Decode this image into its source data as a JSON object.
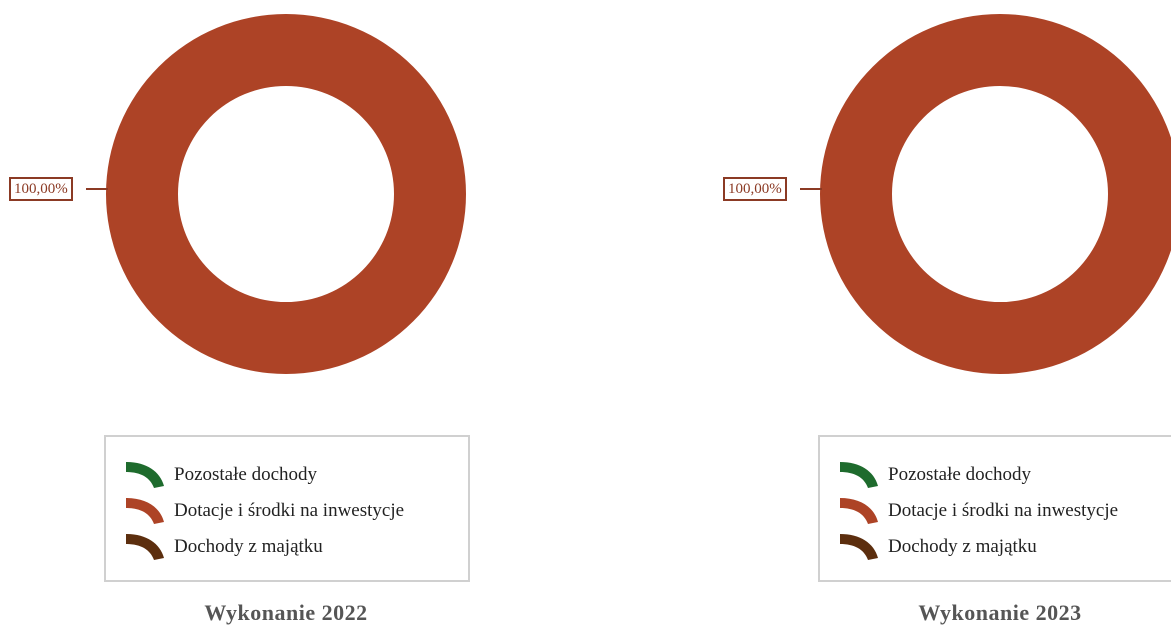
{
  "chart_data": [
    {
      "type": "pie",
      "variant": "donut",
      "title": "Wykonanie 2022",
      "slices": [
        {
          "label": "Pozostałe dochody",
          "value": 0,
          "color": "#1e6b2d"
        },
        {
          "label": "Dotacje i środki na inwestycje",
          "value": 100.0,
          "color": "#ad4326"
        },
        {
          "label": "Dochody z majątku",
          "value": 0,
          "color": "#5c2e0e"
        }
      ],
      "data_labels": [
        "100,00%"
      ],
      "legend": {
        "position": "bottom",
        "entries": [
          "Pozostałe dochody",
          "Dotacje i środki na inwestycje",
          "Dochody z majątku"
        ]
      }
    },
    {
      "type": "pie",
      "variant": "donut",
      "title": "Wykonanie 2023",
      "slices": [
        {
          "label": "Pozostałe dochody",
          "value": 0,
          "color": "#1e6b2d"
        },
        {
          "label": "Dotacje i środki na inwestycje",
          "value": 100.0,
          "color": "#ad4326"
        },
        {
          "label": "Dochody z majątku",
          "value": 0,
          "color": "#5c2e0e"
        }
      ],
      "data_labels": [
        "100,00%"
      ],
      "legend": {
        "position": "bottom",
        "entries": [
          "Pozostałe dochody",
          "Dotacje i środki na inwestycje",
          "Dochody z majątku"
        ]
      }
    }
  ],
  "colors": {
    "label_border": "#8b3a24",
    "legend_border": "#d0d0d0",
    "title_text": "#555555"
  }
}
